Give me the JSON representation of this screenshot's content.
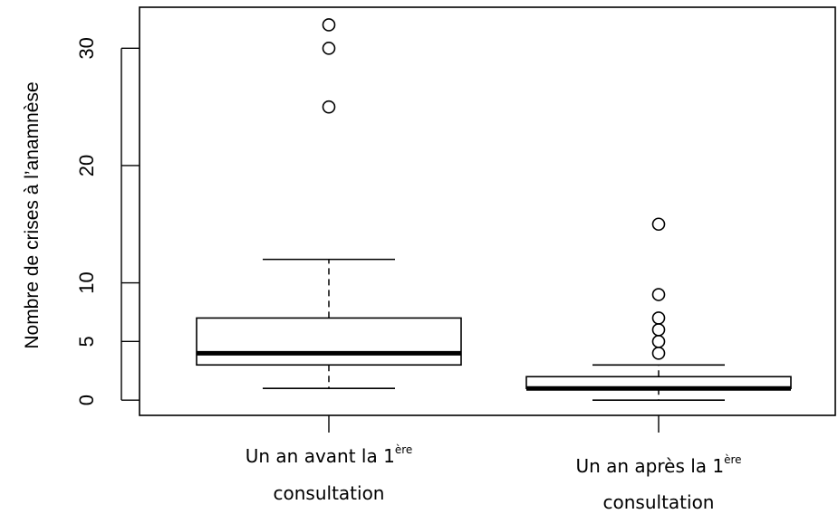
{
  "chart_data": {
    "type": "boxplot",
    "title": "",
    "xlabel": "",
    "ylabel": "Nombre de crises à l’anamnèse",
    "ylim": [
      -1.3,
      33.5
    ],
    "yticks": [
      0,
      5,
      10,
      20,
      30
    ],
    "grid": false,
    "legend": "none",
    "groups": [
      {
        "label_main": "Un an avant la 1",
        "label_sup": "ère",
        "label_line2": "consultation",
        "whisker_low": 1,
        "q1": 3,
        "median": 4,
        "q3": 7,
        "whisker_high": 12,
        "outliers": [
          25,
          30,
          32
        ]
      },
      {
        "label_main": "Un an après la 1",
        "label_sup": "ère",
        "label_line2": "consultation",
        "whisker_low": 0,
        "q1": 1,
        "median": 1,
        "q3": 2,
        "whisker_high": 3,
        "outliers": [
          4,
          5,
          6,
          7,
          9,
          15
        ]
      }
    ]
  }
}
